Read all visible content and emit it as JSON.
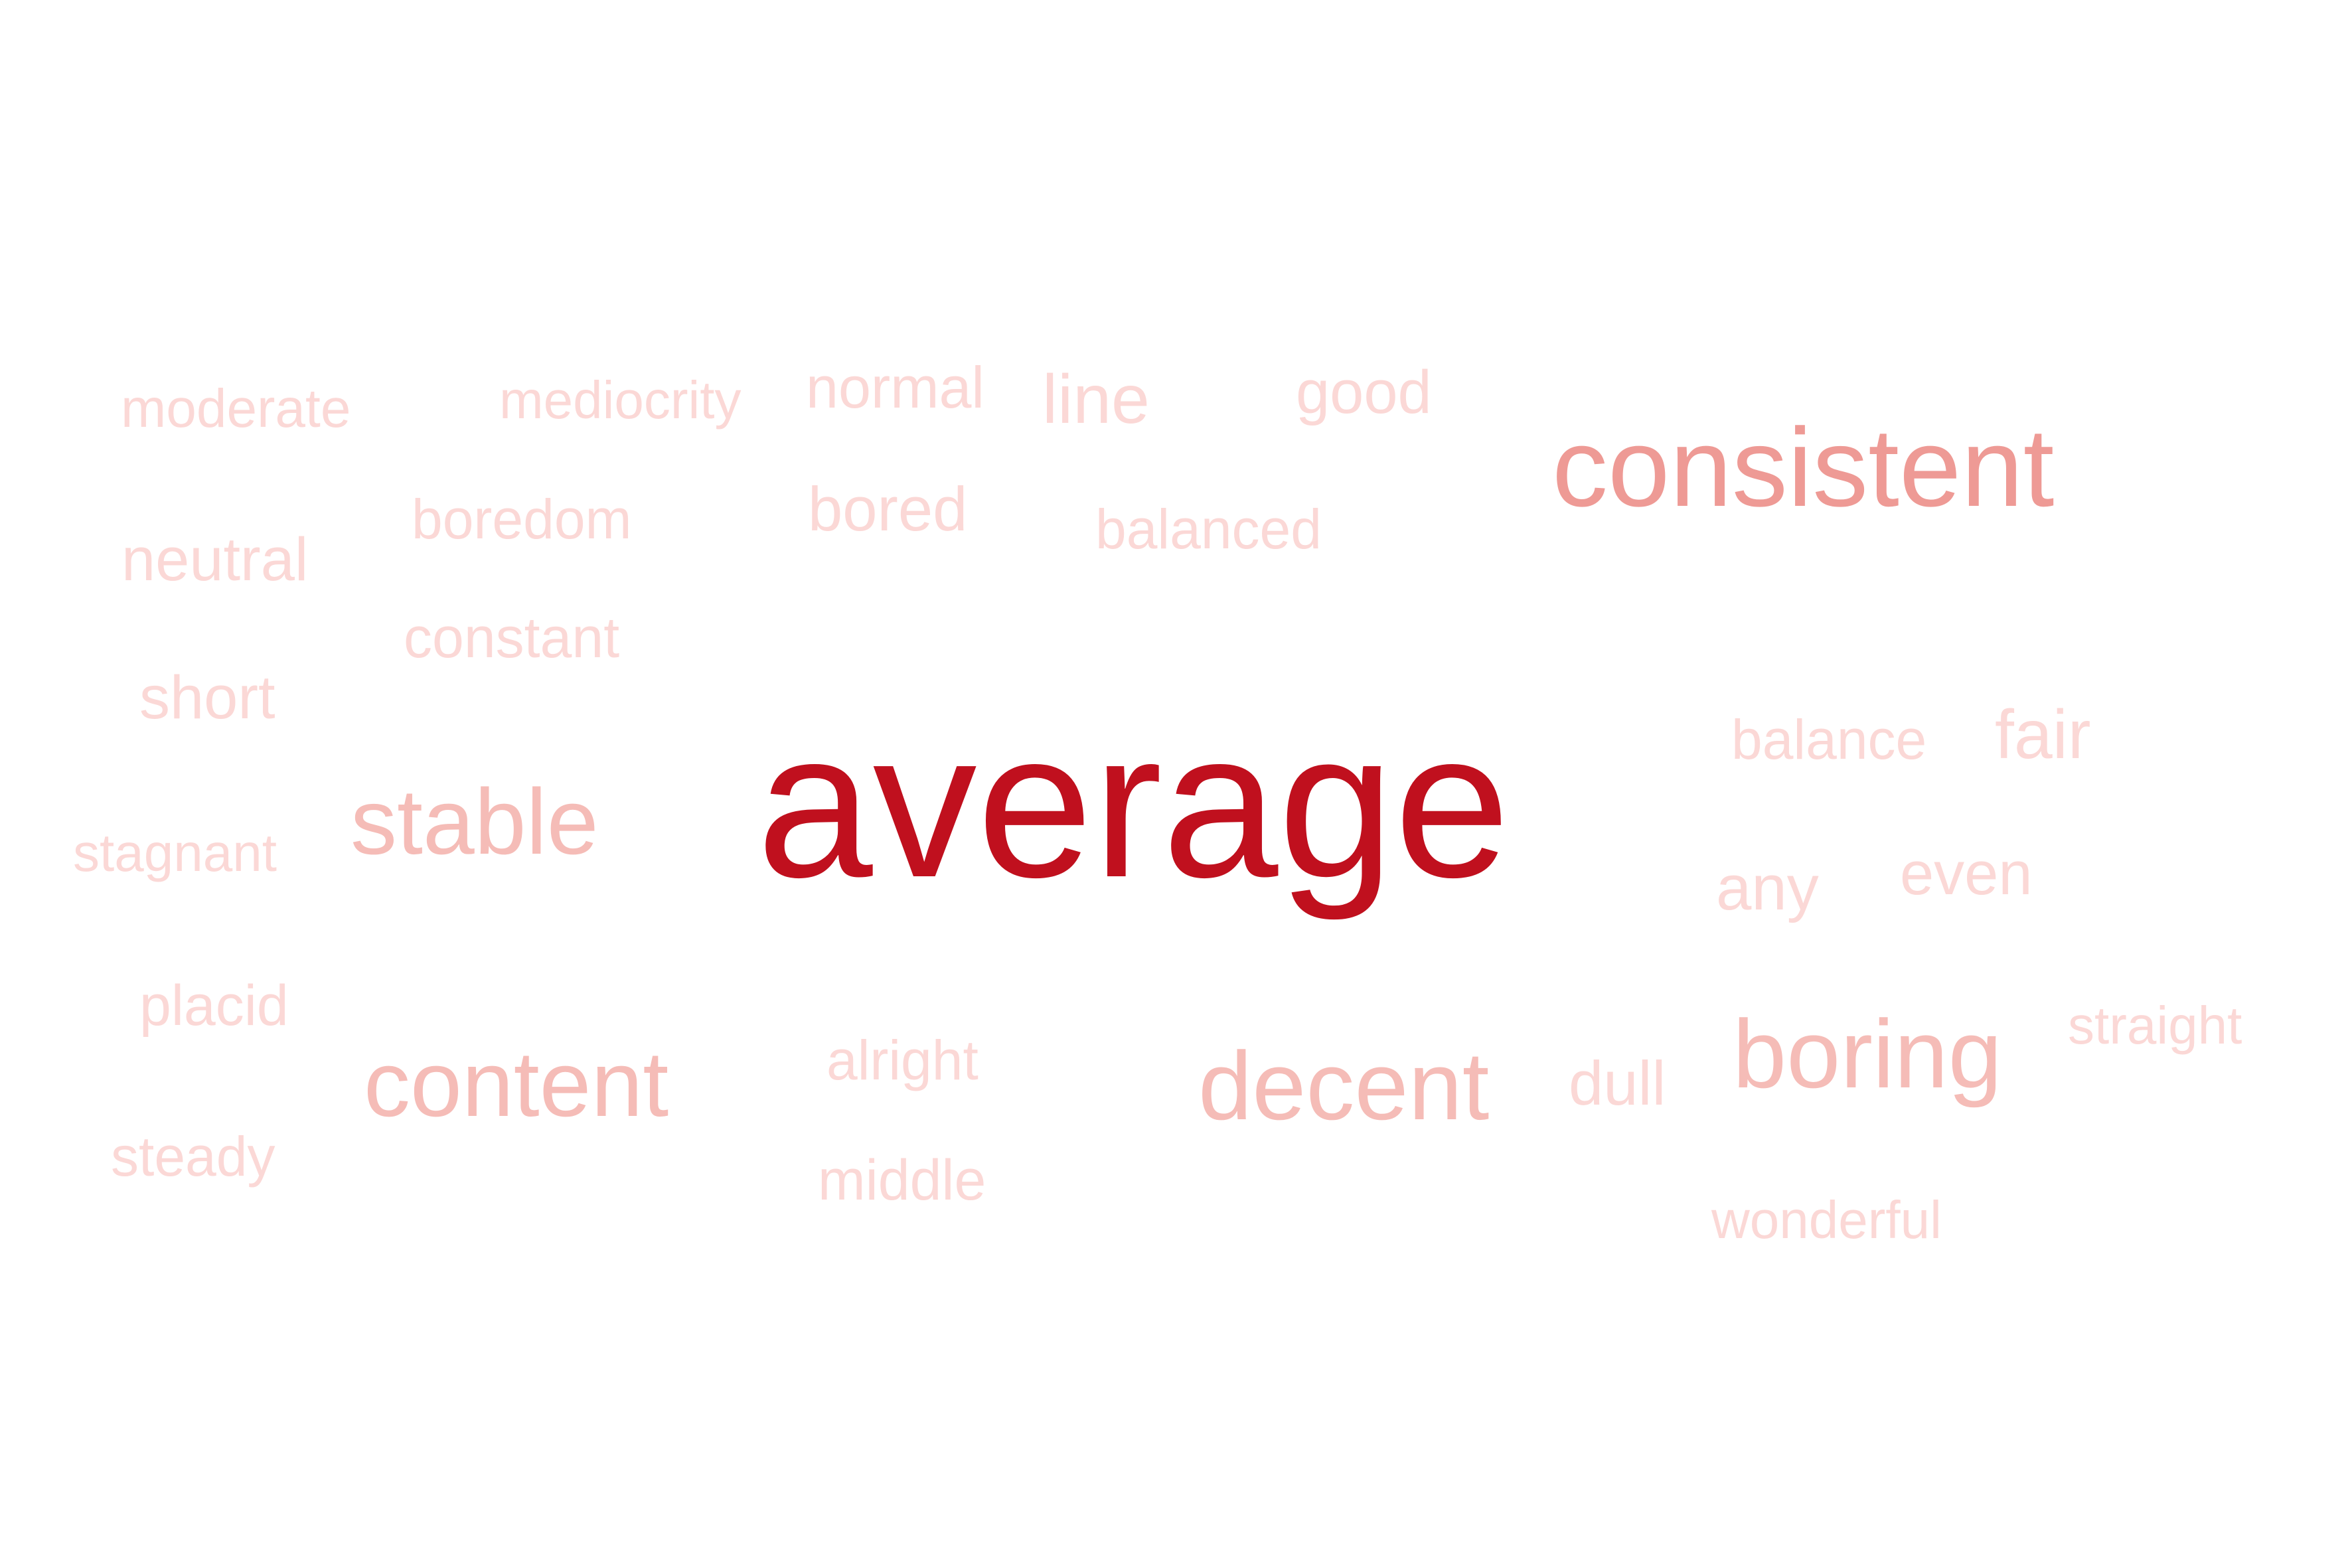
{
  "word_cloud": {
    "colors": {
      "primary": "#c0101e",
      "strong": "#ee9a95",
      "medium": "#f5bcb7",
      "light": "#fbd8d6"
    },
    "words": [
      {
        "text": "average",
        "tier": "primary"
      },
      {
        "text": "consistent",
        "tier": "strong"
      },
      {
        "text": "stable",
        "tier": "medium"
      },
      {
        "text": "content",
        "tier": "medium"
      },
      {
        "text": "decent",
        "tier": "medium"
      },
      {
        "text": "boring",
        "tier": "medium"
      },
      {
        "text": "moderate",
        "tier": "light"
      },
      {
        "text": "mediocrity",
        "tier": "light"
      },
      {
        "text": "normal",
        "tier": "light"
      },
      {
        "text": "line",
        "tier": "light"
      },
      {
        "text": "good",
        "tier": "light"
      },
      {
        "text": "neutral",
        "tier": "light"
      },
      {
        "text": "boredom",
        "tier": "light"
      },
      {
        "text": "bored",
        "tier": "light"
      },
      {
        "text": "balanced",
        "tier": "light"
      },
      {
        "text": "constant",
        "tier": "light"
      },
      {
        "text": "short",
        "tier": "light"
      },
      {
        "text": "balance",
        "tier": "light"
      },
      {
        "text": "fair",
        "tier": "light"
      },
      {
        "text": "stagnant",
        "tier": "light"
      },
      {
        "text": "any",
        "tier": "light"
      },
      {
        "text": "even",
        "tier": "light"
      },
      {
        "text": "placid",
        "tier": "light"
      },
      {
        "text": "straight",
        "tier": "light"
      },
      {
        "text": "alright",
        "tier": "light"
      },
      {
        "text": "dull",
        "tier": "light"
      },
      {
        "text": "steady",
        "tier": "light"
      },
      {
        "text": "middle",
        "tier": "light"
      },
      {
        "text": "wonderful",
        "tier": "light"
      }
    ]
  }
}
